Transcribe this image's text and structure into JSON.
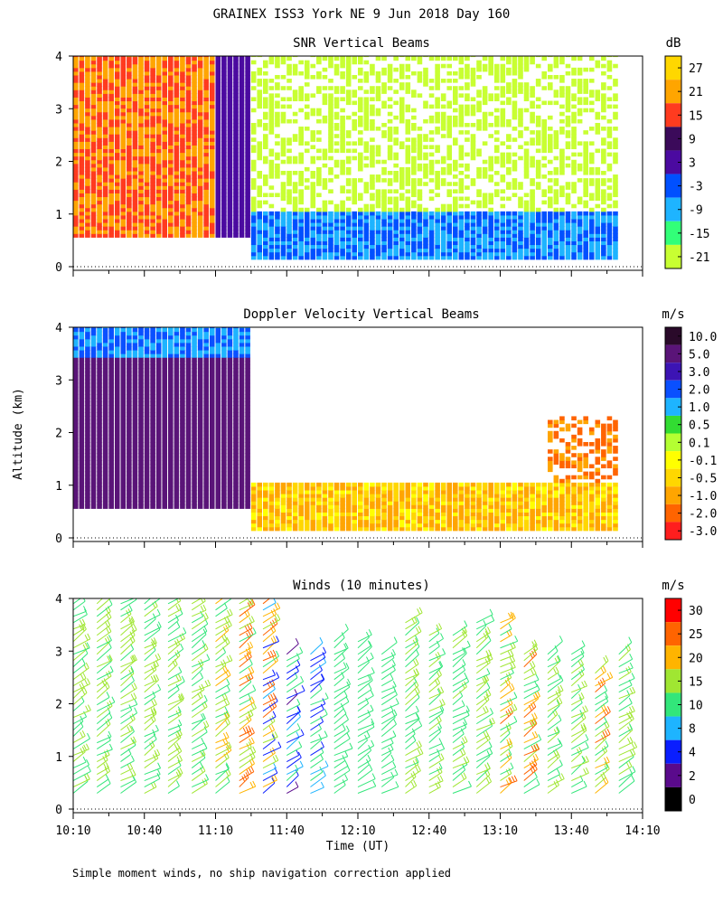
{
  "figure": {
    "title": "GRAINEX ISS3 York NE   9 Jun 2018 Day 160",
    "ylabel": "Altitude (km)",
    "xlabel": "Time (UT)",
    "footnote": "Simple moment winds, no ship navigation correction applied",
    "xticks": [
      "10:10",
      "10:40",
      "11:10",
      "11:40",
      "12:10",
      "12:40",
      "13:10",
      "13:40",
      "14:10"
    ],
    "yticks": [
      "0",
      "1",
      "2",
      "3",
      "4"
    ]
  },
  "chart_data": [
    {
      "type": "heatmap",
      "title": "SNR Vertical Beams",
      "xlabel": "Time (UT)",
      "ylabel": "Altitude (km)",
      "x_range": [
        "10:10",
        "14:10"
      ],
      "ylim": [
        0,
        4
      ],
      "colorbar": {
        "unit": "dB",
        "labels": [
          "27",
          "21",
          "15",
          "9",
          "3",
          "-3",
          "-9",
          "-15",
          "-21"
        ],
        "colors": [
          "#ffd700",
          "#ffa500",
          "#ff3b1f",
          "#3b0a5a",
          "#4b0aa0",
          "#0050ff",
          "#1eb4ff",
          "#32ff78",
          "#c8ff32"
        ]
      },
      "regions": [
        {
          "time_start": "10:10",
          "time_end": "11:10",
          "alt_start": 0.5,
          "alt_end": 4.0,
          "value_range_db": [
            15,
            27
          ]
        },
        {
          "time_start": "11:10",
          "time_end": "11:25",
          "alt_start": 0.5,
          "alt_end": 4.0,
          "value_range_db": [
            3,
            9
          ]
        },
        {
          "time_start": "11:25",
          "time_end": "14:00",
          "alt_start": 0.1,
          "alt_end": 1.0,
          "value_range_db": [
            -9,
            3
          ]
        },
        {
          "time_start": "11:25",
          "time_end": "14:00",
          "alt_start": 1.0,
          "alt_end": 4.0,
          "value_range_db": [
            -21,
            -15
          ]
        }
      ]
    },
    {
      "type": "heatmap",
      "title": "Doppler Velocity Vertical Beams",
      "xlabel": "Time (UT)",
      "ylabel": "Altitude (km)",
      "x_range": [
        "10:10",
        "14:10"
      ],
      "ylim": [
        0,
        4
      ],
      "colorbar": {
        "unit": "m/s",
        "labels": [
          "10.0",
          "5.0",
          "3.0",
          "2.0",
          "1.0",
          "0.5",
          "0.1",
          "-0.1",
          "-0.5",
          "-1.0",
          "-2.0",
          "-3.0"
        ],
        "colors": [
          "#2a0a2a",
          "#5a1478",
          "#3c14b4",
          "#0a50ff",
          "#1eb4ff",
          "#32dc32",
          "#b4ff32",
          "#ffff00",
          "#ffd700",
          "#ffa500",
          "#ff6400",
          "#ff1e1e"
        ]
      },
      "regions": [
        {
          "time_start": "10:10",
          "time_end": "11:25",
          "alt_start": 0.5,
          "alt_end": 3.4,
          "value_range_ms": [
            5.0,
            10.0
          ]
        },
        {
          "time_start": "10:10",
          "time_end": "11:25",
          "alt_start": 3.4,
          "alt_end": 4.0,
          "value_range_ms": [
            1.0,
            3.0
          ]
        },
        {
          "time_start": "11:25",
          "time_end": "14:00",
          "alt_start": 0.1,
          "alt_end": 1.0,
          "value_range_ms": [
            -1.0,
            0.1
          ]
        },
        {
          "time_start": "13:30",
          "time_end": "14:00",
          "alt_start": 1.0,
          "alt_end": 2.3,
          "value_range_ms": [
            -2.0,
            -0.5
          ]
        }
      ]
    },
    {
      "type": "scatter",
      "title": "Winds (10 minutes)",
      "xlabel": "Time (UT)",
      "ylabel": "Altitude (km)",
      "x_range": [
        "10:10",
        "14:10"
      ],
      "ylim": [
        0,
        4
      ],
      "colorbar": {
        "unit": "m/s",
        "labels": [
          "30",
          "25",
          "20",
          "15",
          "10",
          "8",
          "4",
          "2",
          "0"
        ],
        "colors": [
          "#ff0000",
          "#ff6400",
          "#ffb400",
          "#a0e632",
          "#32e67a",
          "#1eb4ff",
          "#0a1eff",
          "#5a0a8c",
          "#000000"
        ]
      },
      "series": [
        {
          "time": "10:10",
          "alt_start": 0.3,
          "alt_end": 4.0,
          "speed_range_ms": [
            10,
            20
          ]
        },
        {
          "time": "10:20",
          "alt_start": 0.3,
          "alt_end": 4.0,
          "speed_range_ms": [
            10,
            20
          ]
        },
        {
          "time": "10:30",
          "alt_start": 0.3,
          "alt_end": 4.0,
          "speed_range_ms": [
            10,
            20
          ]
        },
        {
          "time": "10:40",
          "alt_start": 0.3,
          "alt_end": 4.0,
          "speed_range_ms": [
            10,
            20
          ]
        },
        {
          "time": "10:50",
          "alt_start": 0.3,
          "alt_end": 4.0,
          "speed_range_ms": [
            10,
            20
          ]
        },
        {
          "time": "11:00",
          "alt_start": 0.3,
          "alt_end": 4.0,
          "speed_range_ms": [
            10,
            20
          ]
        },
        {
          "time": "11:10",
          "alt_start": 0.3,
          "alt_end": 4.0,
          "speed_range_ms": [
            10,
            25
          ]
        },
        {
          "time": "11:20",
          "alt_start": 0.3,
          "alt_end": 4.0,
          "speed_range_ms": [
            10,
            30
          ]
        },
        {
          "time": "11:30",
          "alt_start": 0.3,
          "alt_end": 4.0,
          "speed_range_ms": [
            4,
            30
          ]
        },
        {
          "time": "11:40",
          "alt_start": 0.3,
          "alt_end": 3.0,
          "speed_range_ms": [
            2,
            15
          ]
        },
        {
          "time": "11:50",
          "alt_start": 0.3,
          "alt_end": 3.0,
          "speed_range_ms": [
            4,
            15
          ]
        },
        {
          "time": "12:00",
          "alt_start": 0.3,
          "alt_end": 3.2,
          "speed_range_ms": [
            10,
            15
          ]
        },
        {
          "time": "12:10",
          "alt_start": 0.3,
          "alt_end": 3.2,
          "speed_range_ms": [
            10,
            15
          ]
        },
        {
          "time": "12:20",
          "alt_start": 0.3,
          "alt_end": 3.0,
          "speed_range_ms": [
            10,
            15
          ]
        },
        {
          "time": "12:30",
          "alt_start": 0.3,
          "alt_end": 3.6,
          "speed_range_ms": [
            10,
            20
          ]
        },
        {
          "time": "12:40",
          "alt_start": 0.3,
          "alt_end": 3.4,
          "speed_range_ms": [
            10,
            20
          ]
        },
        {
          "time": "12:50",
          "alt_start": 0.3,
          "alt_end": 3.4,
          "speed_range_ms": [
            10,
            20
          ]
        },
        {
          "time": "13:00",
          "alt_start": 0.3,
          "alt_end": 3.6,
          "speed_range_ms": [
            10,
            20
          ]
        },
        {
          "time": "13:10",
          "alt_start": 0.3,
          "alt_end": 3.6,
          "speed_range_ms": [
            10,
            30
          ]
        },
        {
          "time": "13:20",
          "alt_start": 0.3,
          "alt_end": 3.0,
          "speed_range_ms": [
            10,
            30
          ]
        },
        {
          "time": "13:30",
          "alt_start": 0.3,
          "alt_end": 3.0,
          "speed_range_ms": [
            10,
            20
          ]
        },
        {
          "time": "13:40",
          "alt_start": 0.3,
          "alt_end": 3.0,
          "speed_range_ms": [
            10,
            20
          ]
        },
        {
          "time": "13:50",
          "alt_start": 0.3,
          "alt_end": 2.6,
          "speed_range_ms": [
            10,
            30
          ]
        },
        {
          "time": "14:00",
          "alt_start": 0.3,
          "alt_end": 3.0,
          "speed_range_ms": [
            10,
            20
          ]
        }
      ]
    }
  ]
}
